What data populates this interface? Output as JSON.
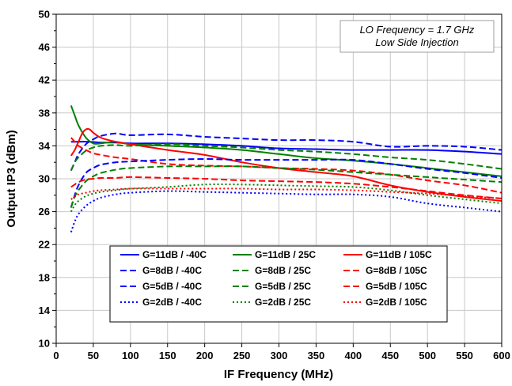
{
  "chart_data": {
    "type": "line",
    "title": "",
    "xlabel": "IF Frequency (MHz)",
    "ylabel": "Output IP3 (dBm)",
    "xlim": [
      0,
      600
    ],
    "ylim": [
      10,
      50
    ],
    "xticks": [
      0,
      50,
      100,
      150,
      200,
      250,
      300,
      350,
      400,
      450,
      500,
      550,
      600
    ],
    "yticks": [
      10,
      14,
      18,
      22,
      26,
      30,
      34,
      38,
      42,
      46,
      50
    ],
    "grid": true,
    "annotation": [
      "LO Frequency = 1.7 GHz",
      "Low Side Injection"
    ],
    "legend_position": "lower-center",
    "colors": {
      "-40C": "#0000ff",
      "25C": "#008000",
      "105C": "#ff0000"
    },
    "series": [
      {
        "name": "G=11dB / -40C",
        "color": "#0000ff",
        "dash": "solid",
        "x": [
          20,
          30,
          45,
          60,
          80,
          100,
          150,
          200,
          250,
          300,
          350,
          400,
          450,
          500,
          550,
          600
        ],
        "y": [
          34.5,
          34.5,
          34.5,
          34.4,
          34.4,
          34.3,
          34.3,
          34.2,
          34.0,
          33.7,
          33.6,
          33.5,
          33.5,
          33.5,
          33.3,
          33.0
        ]
      },
      {
        "name": "G=11dB / 25C",
        "color": "#008000",
        "dash": "solid",
        "x": [
          20,
          25,
          30,
          40,
          50,
          60,
          80,
          100,
          150,
          200,
          250,
          300,
          350,
          400,
          450,
          500,
          550,
          600
        ],
        "y": [
          38.9,
          37.7,
          36.5,
          35.0,
          34.3,
          34.3,
          34.5,
          34.2,
          34.0,
          33.8,
          33.5,
          33.0,
          32.5,
          32.2,
          31.8,
          31.3,
          30.8,
          30.3
        ]
      },
      {
        "name": "G=11dB / 105C",
        "color": "#ff0000",
        "dash": "solid",
        "x": [
          20,
          25,
          30,
          35,
          40,
          45,
          50,
          60,
          80,
          100,
          150,
          200,
          250,
          300,
          350,
          400,
          450,
          500,
          550,
          600
        ],
        "y": [
          32.8,
          33.5,
          34.5,
          35.5,
          36.0,
          36.0,
          35.6,
          35.0,
          34.5,
          34.2,
          33.5,
          32.9,
          32.0,
          31.3,
          30.8,
          30.3,
          29.2,
          28.4,
          27.8,
          27.3
        ]
      },
      {
        "name": "G=8dB / -40C",
        "color": "#0000ff",
        "dash": "dash",
        "x": [
          20,
          25,
          30,
          40,
          50,
          60,
          80,
          100,
          150,
          200,
          250,
          300,
          350,
          400,
          450,
          500,
          550,
          600
        ],
        "y": [
          31.0,
          32.0,
          33.0,
          34.2,
          34.8,
          35.2,
          35.5,
          35.3,
          35.4,
          35.1,
          34.9,
          34.7,
          34.7,
          34.5,
          33.9,
          34.0,
          33.9,
          33.5
        ]
      },
      {
        "name": "G=8dB / 25C",
        "color": "#008000",
        "dash": "dash",
        "x": [
          20,
          25,
          30,
          40,
          50,
          60,
          80,
          100,
          150,
          200,
          250,
          300,
          350,
          400,
          450,
          500,
          550,
          600
        ],
        "y": [
          31.0,
          32.0,
          32.6,
          33.4,
          33.8,
          34.0,
          34.1,
          34.0,
          34.2,
          34.0,
          33.8,
          33.5,
          33.3,
          33.0,
          32.6,
          32.3,
          31.8,
          31.2
        ]
      },
      {
        "name": "G=8dB / 105C",
        "color": "#ff0000",
        "dash": "dash",
        "x": [
          20,
          25,
          30,
          40,
          50,
          60,
          80,
          100,
          150,
          200,
          250,
          300,
          350,
          400,
          450,
          500,
          550,
          600
        ],
        "y": [
          35.0,
          34.5,
          34.0,
          33.5,
          33.1,
          32.9,
          32.6,
          32.4,
          31.8,
          31.6,
          31.5,
          31.3,
          31.2,
          31.0,
          30.5,
          29.8,
          29.2,
          28.3
        ]
      },
      {
        "name": "G=5dB / -40C",
        "color": "#0000ff",
        "dash": "dash",
        "x": [
          20,
          25,
          30,
          40,
          50,
          60,
          80,
          100,
          150,
          200,
          250,
          300,
          350,
          400,
          450,
          500,
          550,
          600
        ],
        "y": [
          26.5,
          28.0,
          29.2,
          30.7,
          31.3,
          31.7,
          32.0,
          32.1,
          32.3,
          32.4,
          32.3,
          32.3,
          32.3,
          32.3,
          31.8,
          31.2,
          30.7,
          30.1
        ]
      },
      {
        "name": "G=5dB / 25C",
        "color": "#008000",
        "dash": "dash",
        "x": [
          20,
          25,
          30,
          40,
          50,
          60,
          80,
          100,
          150,
          200,
          250,
          300,
          350,
          400,
          450,
          500,
          550,
          600
        ],
        "y": [
          26.5,
          27.8,
          28.6,
          29.7,
          30.3,
          30.7,
          31.1,
          31.3,
          31.5,
          31.5,
          31.5,
          31.3,
          31.1,
          30.8,
          30.5,
          30.2,
          29.9,
          29.6
        ]
      },
      {
        "name": "G=5dB / 105C",
        "color": "#ff0000",
        "dash": "dash",
        "x": [
          20,
          25,
          30,
          40,
          50,
          60,
          80,
          100,
          150,
          200,
          250,
          300,
          350,
          400,
          450,
          500,
          550,
          600
        ],
        "y": [
          29.0,
          29.3,
          29.6,
          29.9,
          30.0,
          30.1,
          30.1,
          30.2,
          30.1,
          30.0,
          29.8,
          29.7,
          29.6,
          29.4,
          29.0,
          28.5,
          28.0,
          27.6
        ]
      },
      {
        "name": "G=2dB / -40C",
        "color": "#0000ff",
        "dash": "dot",
        "x": [
          20,
          25,
          30,
          40,
          50,
          60,
          80,
          100,
          150,
          200,
          250,
          300,
          350,
          400,
          450,
          500,
          550,
          600
        ],
        "y": [
          23.5,
          24.8,
          25.7,
          26.7,
          27.3,
          27.7,
          28.1,
          28.3,
          28.5,
          28.4,
          28.3,
          28.2,
          28.1,
          28.1,
          27.8,
          27.0,
          26.5,
          26.0
        ]
      },
      {
        "name": "G=2dB / 25C",
        "color": "#008000",
        "dash": "dot",
        "x": [
          20,
          25,
          30,
          40,
          50,
          60,
          80,
          100,
          150,
          200,
          250,
          300,
          350,
          400,
          450,
          500,
          550,
          600
        ],
        "y": [
          26.0,
          26.8,
          27.3,
          27.9,
          28.2,
          28.4,
          28.6,
          28.8,
          29.0,
          29.3,
          29.3,
          29.2,
          29.1,
          29.0,
          28.6,
          28.0,
          27.5,
          27.0
        ]
      },
      {
        "name": "G=2dB / 105C",
        "color": "#ff0000",
        "dash": "dot",
        "x": [
          20,
          25,
          30,
          40,
          50,
          60,
          80,
          100,
          150,
          200,
          250,
          300,
          350,
          400,
          450,
          500,
          550,
          600
        ],
        "y": [
          27.5,
          27.8,
          28.1,
          28.3,
          28.5,
          28.6,
          28.7,
          28.8,
          28.8,
          28.8,
          28.8,
          28.7,
          28.7,
          28.6,
          28.4,
          28.2,
          27.9,
          27.6
        ]
      }
    ]
  }
}
